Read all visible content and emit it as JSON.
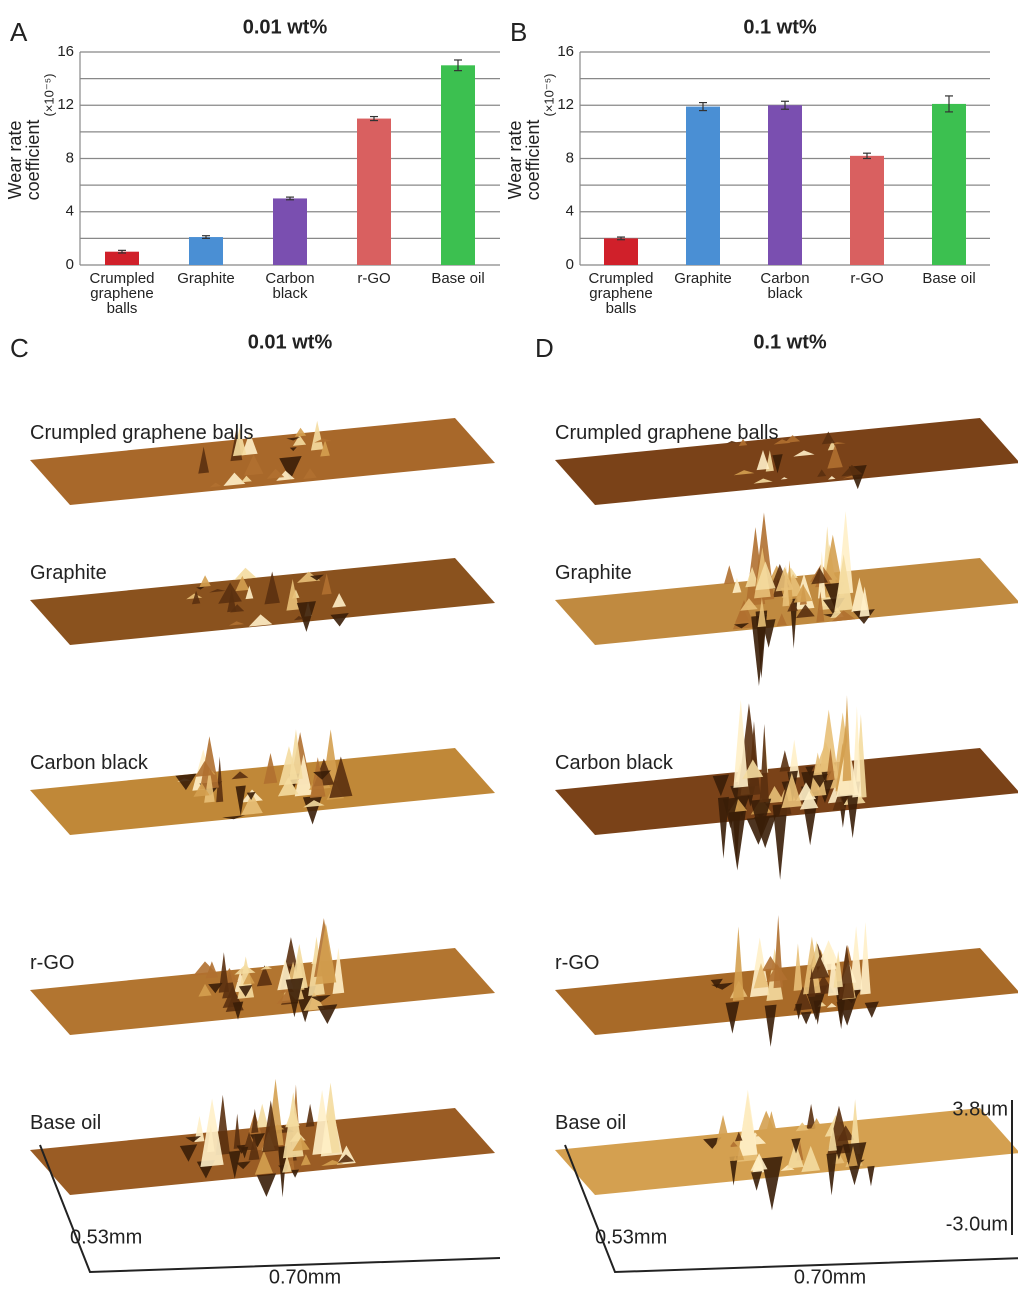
{
  "chart_data": [
    {
      "type": "bar",
      "panel_label": "A",
      "title": "0.01 wt%",
      "y_label": "Wear rate coefficient",
      "y_unit": "(×10⁻⁵)",
      "categories": [
        "Crumpled graphene balls",
        "Graphite",
        "Carbon black",
        "r-GO",
        "Base oil"
      ],
      "values": [
        1,
        2.1,
        5,
        11,
        15
      ],
      "errors": [
        0.1,
        0.1,
        0.1,
        0.15,
        0.4
      ],
      "colors": [
        "#d0202a",
        "#4a8fd4",
        "#7a4fb0",
        "#d96060",
        "#3cc050"
      ],
      "ylim": [
        0,
        16
      ],
      "yticks": [
        0,
        4,
        8,
        12,
        16
      ],
      "minor_yticks": [
        2,
        6,
        10,
        14
      ],
      "grid": true
    },
    {
      "type": "bar",
      "panel_label": "B",
      "title": "0.1 wt%",
      "y_label": "Wear rate coefficient",
      "y_unit": "(×10⁻⁵)",
      "categories": [
        "Crumpled graphene balls",
        "Graphite",
        "Carbon black",
        "r-GO",
        "Base oil"
      ],
      "values": [
        2,
        11.9,
        12,
        8.2,
        12.1
      ],
      "errors": [
        0.1,
        0.3,
        0.3,
        0.2,
        0.6
      ],
      "colors": [
        "#d0202a",
        "#4a8fd4",
        "#7a4fb0",
        "#d96060",
        "#3cc050"
      ],
      "ylim": [
        0,
        16
      ],
      "yticks": [
        0,
        4,
        8,
        12,
        16
      ],
      "minor_yticks": [
        2,
        6,
        10,
        14
      ],
      "grid": true
    }
  ],
  "surface_panels": [
    {
      "panel_label": "C",
      "title": "0.01 wt%",
      "samples": [
        "Crumpled graphene balls",
        "Graphite",
        "Carbon black",
        "r-GO",
        "Base oil"
      ]
    },
    {
      "panel_label": "D",
      "title": "0.1 wt%",
      "samples": [
        "Crumpled graphene balls",
        "Graphite",
        "Carbon black",
        "r-GO",
        "Base oil"
      ]
    }
  ],
  "scale": {
    "width": "0.70mm",
    "depth": "0.53mm",
    "z_max": "3.8um",
    "z_min": "-3.0um"
  }
}
